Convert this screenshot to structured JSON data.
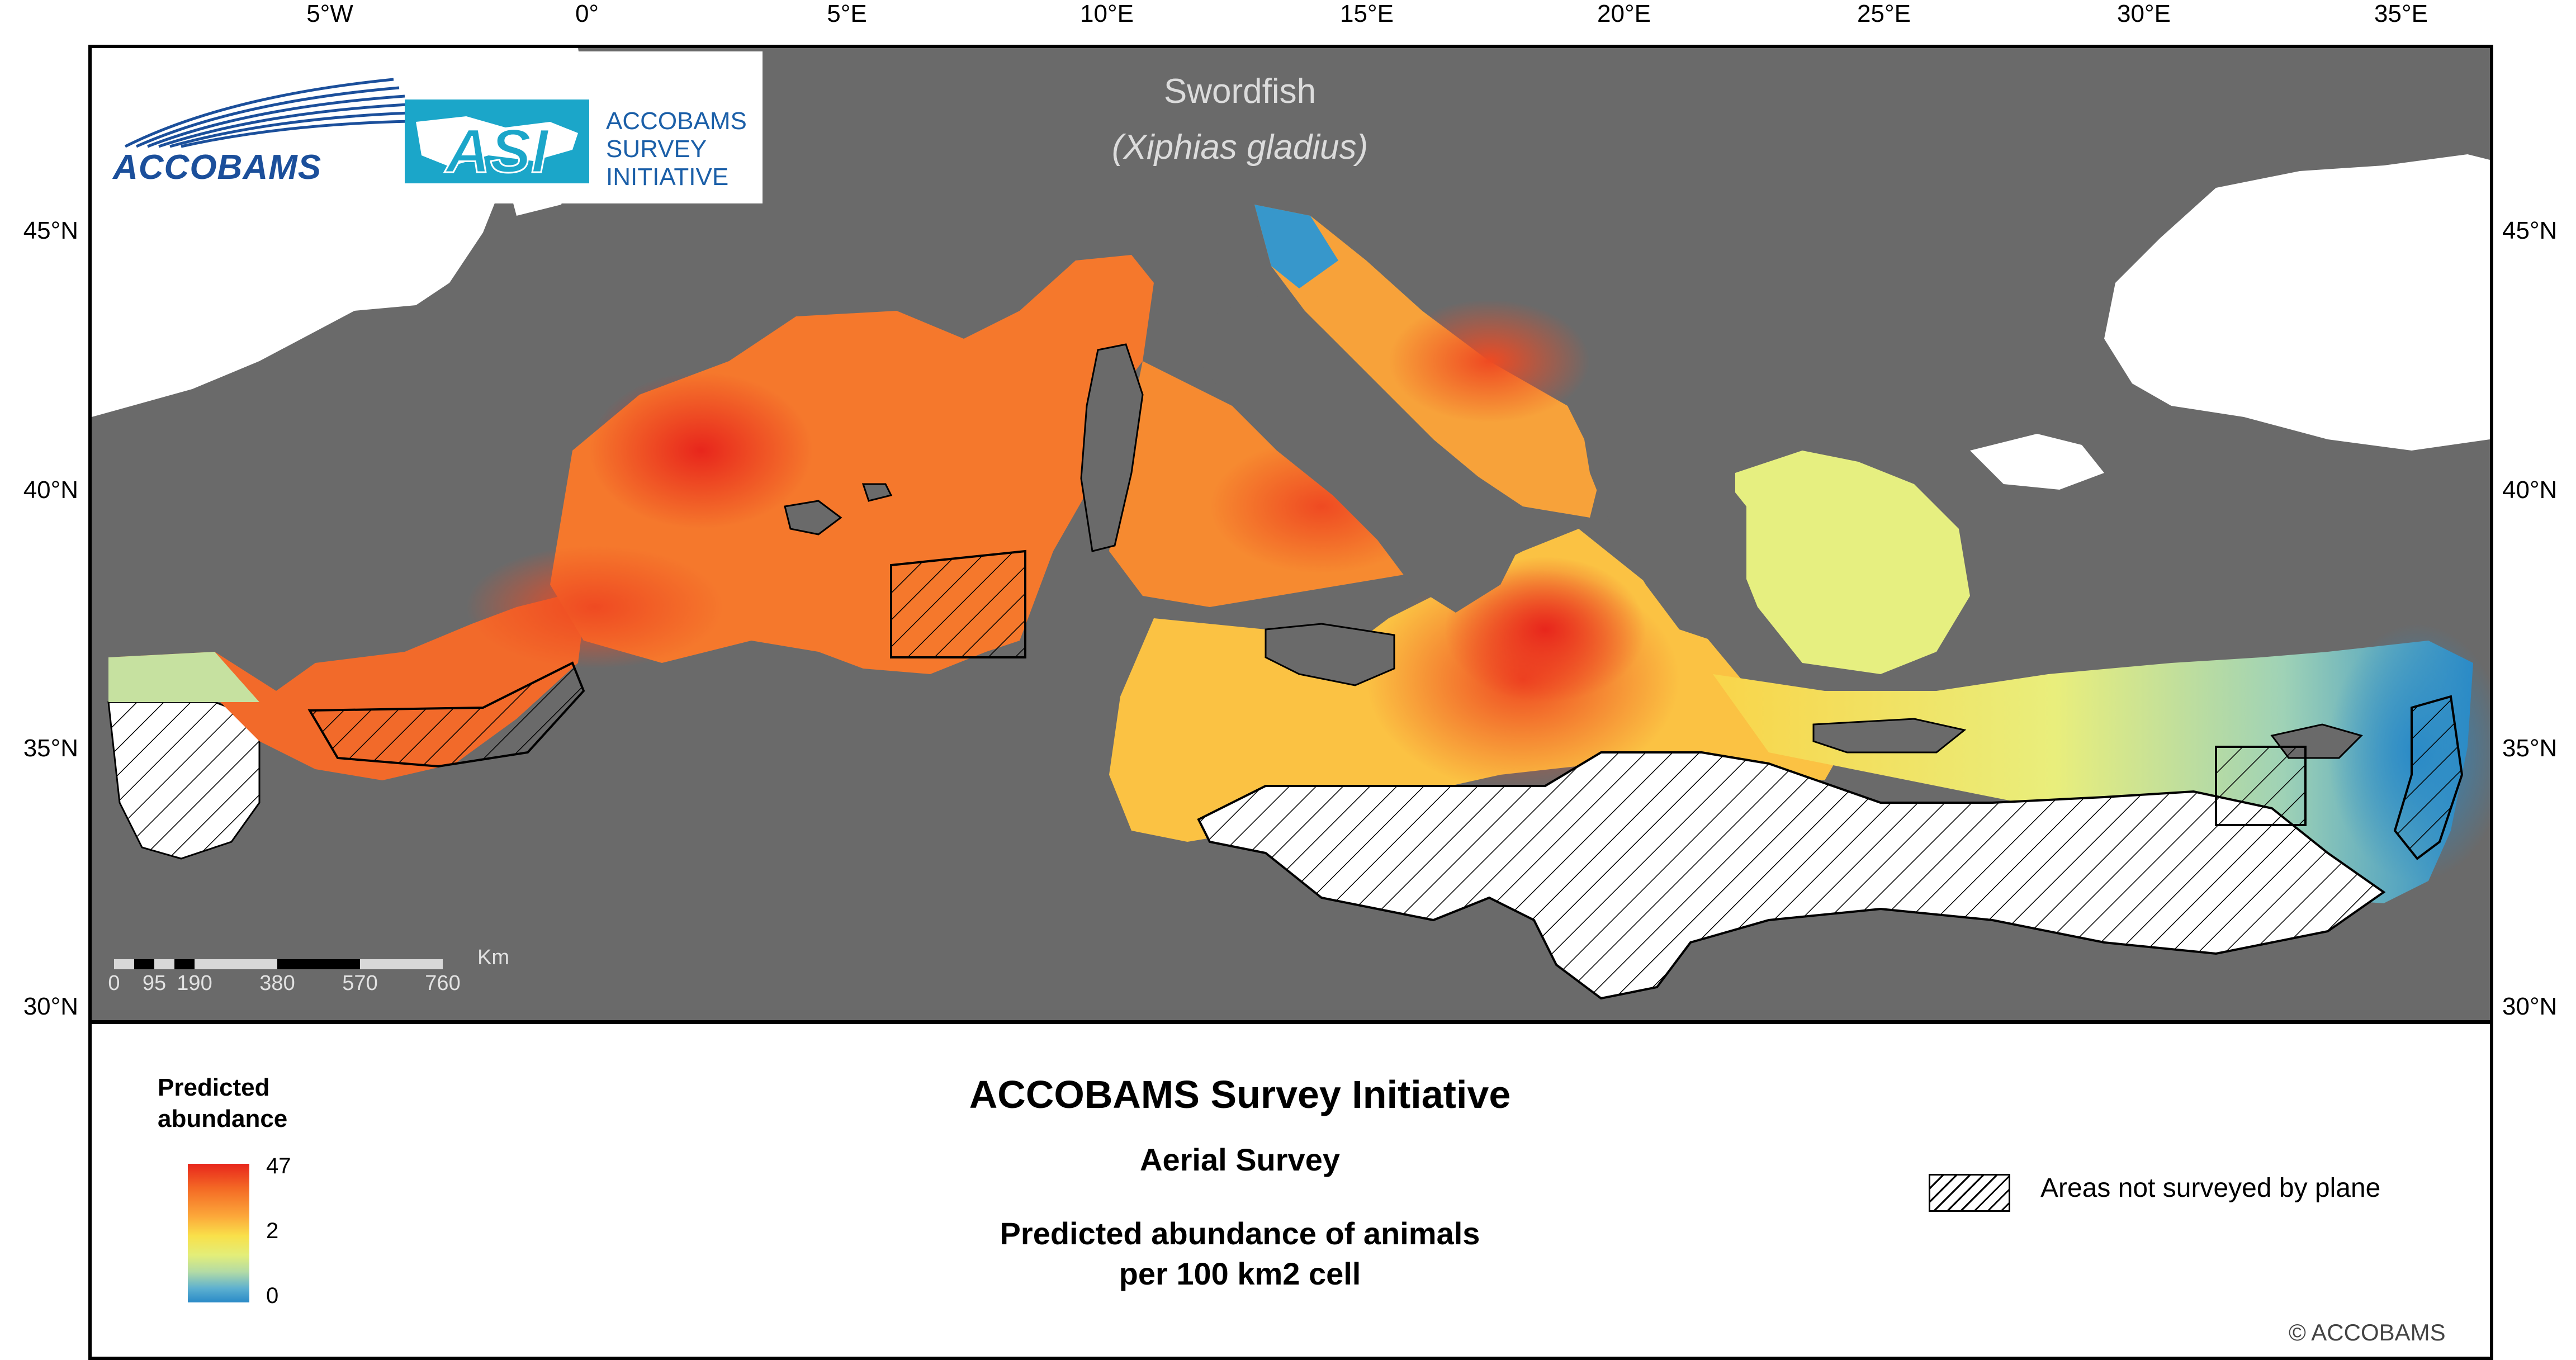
{
  "map": {
    "species_common": "Swordfish",
    "species_latin": "(Xiphias gladius)",
    "longitude_ticks": [
      "5°W",
      "0°",
      "5°E",
      "10°E",
      "15°E",
      "20°E",
      "25°E",
      "30°E",
      "35°E"
    ],
    "latitude_ticks": [
      "45°N",
      "40°N",
      "35°N",
      "30°N"
    ],
    "colors": {
      "sea": "#6a6a6a",
      "land": "#ffffff",
      "high": "#e8261c",
      "mid": "#fbd84a",
      "low": "#2a8ac7"
    }
  },
  "logos": {
    "accobams": "ACCOBAMS",
    "asi_line1": "ACCOBAMS",
    "asi_line2": "SURVEY",
    "asi_line3": "INITIATIVE"
  },
  "scale_bar": {
    "labels": [
      "0",
      "95",
      "190",
      "380",
      "570",
      "760"
    ],
    "unit": "Km"
  },
  "legend": {
    "title": "ACCOBAMS Survey Initiative",
    "subtitle": "Aerial Survey",
    "description_line1": "Predicted abundance of animals",
    "description_line2": "per 100 km2 cell",
    "scale_heading_line1": "Predicted",
    "scale_heading_line2": "abundance",
    "scale_max": "47",
    "scale_mid": "2",
    "scale_min": "0",
    "hatch_label": "Areas not surveyed by plane",
    "copyright": "© ACCOBAMS"
  }
}
